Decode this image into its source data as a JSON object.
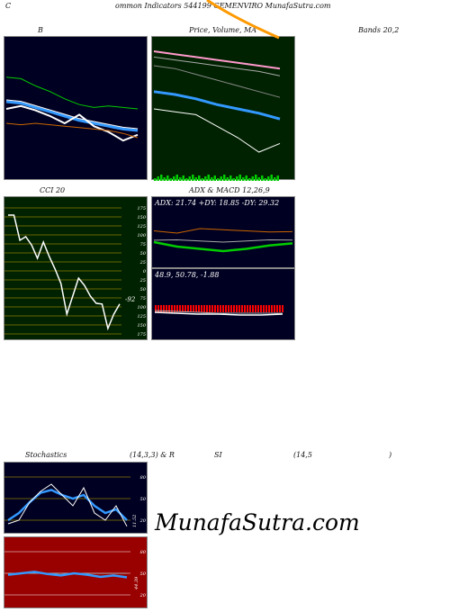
{
  "header": {
    "c": "C",
    "title": "ommon  Indicators 544199 GEMENVIRO MunafaSutra.com",
    "label_b": "B",
    "label_price": "Price,  Volume,  MA",
    "label_bands": "Bands 20,2",
    "label_cci": "CCI 20",
    "label_adx": "ADX  & MACD 12,26,9",
    "label_stoch_a": "Stochastics",
    "label_stoch_b": "(14,3,3) & R",
    "label_stoch_c": "SI",
    "label_stoch_d": "(14,5",
    "label_stoch_e": ")"
  },
  "watermark": "MunafaSutra.com",
  "colors": {
    "panel_navy": "#000022",
    "panel_green": "#002200",
    "panel_dark_green": "#000000",
    "rsi_red": "#990000",
    "grid_olive": "#8B7B00",
    "ma_blue": "#3399ff",
    "ma_green": "#00cc00",
    "ma_orange": "#cc6600",
    "price_white": "#ffffff",
    "pink": "#ff99cc",
    "orange_line": "#ff9900"
  },
  "cci_ticks": [
    "175",
    "150",
    "125",
    "100",
    "75",
    "50",
    "25",
    "0",
    "25",
    "50",
    "75",
    "100",
    "125",
    "150",
    "175"
  ],
  "cci_value": "-92",
  "adx_text": "ADX: 21.74   +DY: 18.85 -DY: 29.32",
  "macd_text": "48.9,  50.78,  -1.88",
  "stoch_ticks": [
    "80",
    "50",
    "20"
  ],
  "stoch_value": "11.52",
  "rsi_ticks": [
    "80",
    "50",
    "20"
  ],
  "rsi_value": "44.39",
  "chart_data": [
    {
      "type": "line",
      "title": "B",
      "series": [
        {
          "name": "",
          "values": [
            72,
            71,
            66,
            62,
            57,
            53,
            51,
            52,
            51,
            50
          ]
        },
        {
          "name": "",
          "values": [
            55,
            54,
            51,
            48,
            45,
            42,
            40,
            38,
            36,
            35
          ]
        },
        {
          "name": "",
          "values": [
            50,
            52,
            49,
            45,
            40,
            46,
            38,
            34,
            28,
            32
          ]
        },
        {
          "name": "",
          "values": [
            40,
            39,
            40,
            39,
            38,
            37,
            36,
            35,
            33,
            30
          ]
        }
      ]
    },
    {
      "type": "line",
      "title": "Price,  Volume,  MA",
      "series": [
        {
          "name": "",
          "values": [
            90,
            88,
            86,
            84,
            82,
            80,
            78
          ]
        },
        {
          "name": "",
          "values": [
            86,
            84,
            82,
            80,
            78,
            76,
            73
          ]
        },
        {
          "name": "",
          "values": [
            80,
            78,
            74,
            70,
            66,
            62,
            58
          ]
        },
        {
          "name": "",
          "values": [
            62,
            60,
            57,
            53,
            50,
            47,
            43
          ]
        },
        {
          "name": "",
          "values": [
            50,
            48,
            46,
            38,
            30,
            20,
            26
          ]
        }
      ]
    },
    {
      "type": "line",
      "title": "CCI 20",
      "ylim": [
        -175,
        175
      ],
      "x": [
        1,
        2,
        3,
        4,
        5,
        6,
        7,
        8,
        9,
        10,
        11,
        12,
        13,
        14,
        15,
        16,
        17,
        18,
        19,
        20
      ],
      "values": [
        155,
        155,
        85,
        95,
        72,
        35,
        80,
        40,
        5,
        -35,
        -120,
        -70,
        -20,
        -40,
        -70,
        -90,
        -92,
        -160,
        -120,
        -92
      ]
    },
    {
      "type": "line",
      "title": "ADX  & MACD 12,26,9",
      "series": [
        {
          "name": "ADX",
          "values": [
            21.7,
            22,
            21,
            20,
            21,
            22,
            21.74
          ]
        },
        {
          "name": "+DY",
          "values": [
            20,
            16,
            14,
            12,
            14,
            17,
            18.85
          ]
        },
        {
          "name": "-DY",
          "values": [
            30,
            28,
            32,
            31,
            30,
            29,
            29.32
          ]
        },
        {
          "name": "MACD",
          "values": [
            48.9,
            50.78,
            -1.88
          ]
        }
      ]
    },
    {
      "type": "line",
      "title": "Stochastics (14,3,3)",
      "ylim": [
        0,
        100
      ],
      "series": [
        {
          "name": "",
          "values": [
            15,
            20,
            45,
            60,
            70,
            55,
            40,
            65,
            30,
            20,
            40,
            11.52
          ]
        },
        {
          "name": "",
          "values": [
            20,
            30,
            45,
            58,
            62,
            55,
            50,
            55,
            40,
            30,
            35,
            20
          ]
        }
      ]
    },
    {
      "type": "line",
      "title": "RSI (14,5)",
      "ylim": [
        0,
        100
      ],
      "series": [
        {
          "name": "",
          "values": [
            48,
            50,
            52,
            49,
            47,
            50,
            48,
            45,
            47,
            44.39
          ]
        },
        {
          "name": "",
          "values": [
            50,
            50,
            50,
            50,
            50,
            50,
            50,
            50,
            50,
            50
          ]
        }
      ]
    }
  ]
}
